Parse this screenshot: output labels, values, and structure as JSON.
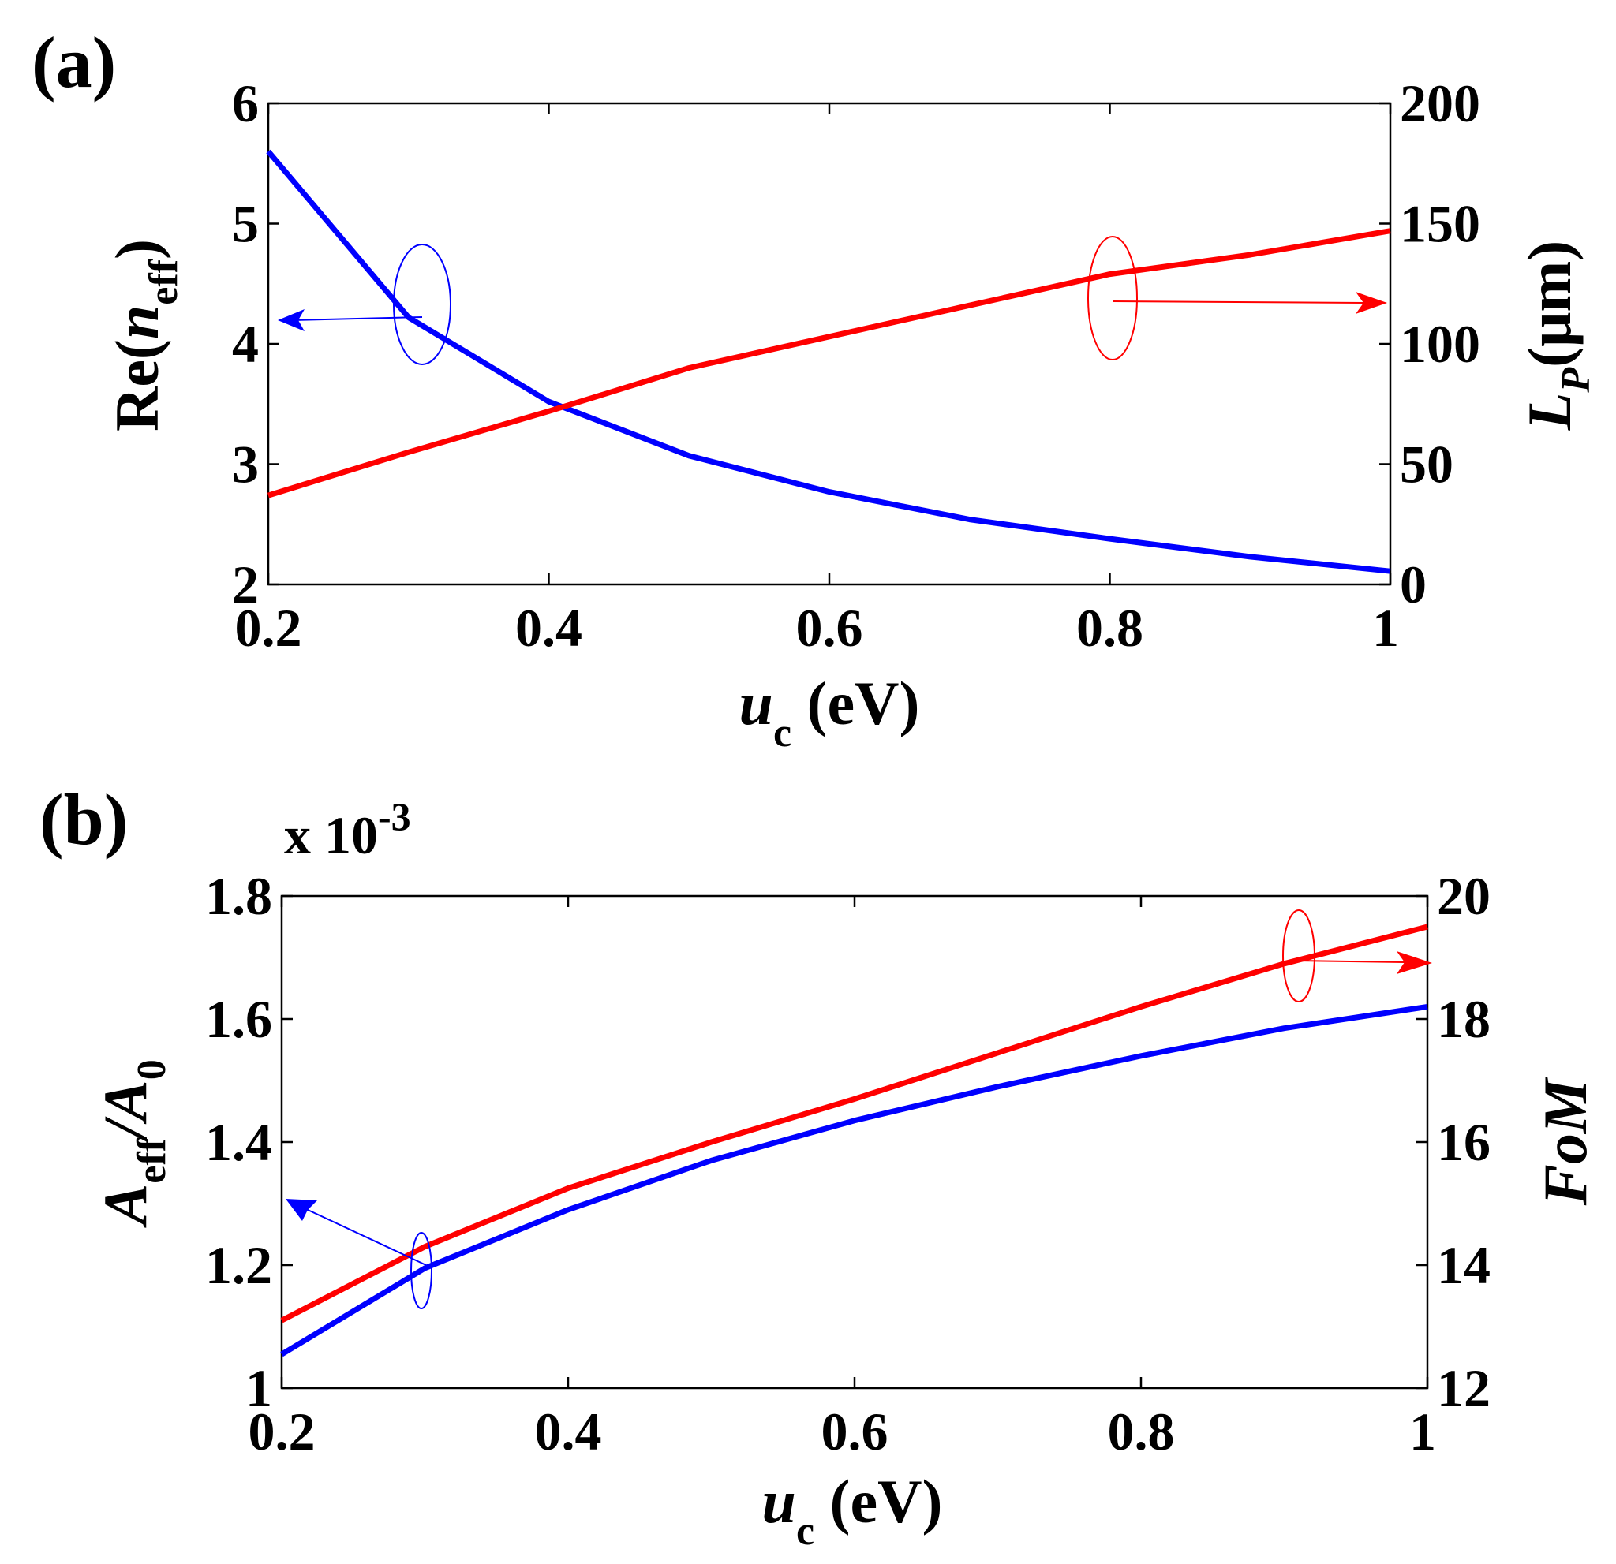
{
  "chart_data": [
    {
      "panel_label": "(a)",
      "type": "line",
      "x": [
        0.2,
        0.3,
        0.4,
        0.5,
        0.6,
        0.7,
        0.8,
        0.9,
        1.0
      ],
      "xlim": [
        0.2,
        1
      ],
      "xticks": [
        "0.2",
        "0.4",
        "0.6",
        "0.8",
        "1"
      ],
      "xlabel": {
        "main": "u",
        "sub": "c",
        "unit": " (eV)"
      },
      "ylim_left": [
        2,
        6
      ],
      "yticks_left": [
        "2",
        "3",
        "4",
        "5",
        "6"
      ],
      "ylabel_left": {
        "pre": "Re(",
        "main": "n",
        "sub": "eff",
        "post": ")"
      },
      "ylim_right": [
        0,
        200
      ],
      "yticks_right": [
        "0",
        "50",
        "100",
        "150",
        "200"
      ],
      "ylabel_right": {
        "main": "L",
        "sub": "P",
        "unit": "(μm)"
      },
      "series": [
        {
          "name": "Re(n_eff)",
          "axis": "left",
          "color": "#0000ff",
          "values": [
            5.6,
            4.22,
            3.52,
            3.07,
            2.77,
            2.54,
            2.38,
            2.23,
            2.11
          ]
        },
        {
          "name": "L_P",
          "axis": "right",
          "color": "#ff0000",
          "values": [
            37,
            55,
            72,
            90,
            103,
            116,
            129,
            137,
            147
          ]
        }
      ]
    },
    {
      "panel_label": "(b)",
      "type": "line",
      "x": [
        0.2,
        0.3,
        0.4,
        0.5,
        0.6,
        0.7,
        0.8,
        0.9,
        1.0
      ],
      "xlim": [
        0.2,
        1
      ],
      "xticks": [
        "0.2",
        "0.4",
        "0.6",
        "0.8",
        "1"
      ],
      "xlabel": {
        "main": "u",
        "sub": "c",
        "unit": " (eV)"
      },
      "ylim_left": [
        1,
        1.8
      ],
      "yticks_left": [
        "1",
        "1.2",
        "1.4",
        "1.6",
        "1.8"
      ],
      "left_multiplier": {
        "text": "x 10",
        "exp": "-3"
      },
      "ylabel_left": {
        "main": "A",
        "sub": "eff",
        "mid": "/",
        "main2": "A",
        "sub2": "0"
      },
      "ylim_right": [
        12,
        20
      ],
      "yticks_right": [
        "12",
        "14",
        "16",
        "18",
        "20"
      ],
      "ylabel_right": {
        "main": "FoM"
      },
      "series": [
        {
          "name": "A_eff/A_0",
          "axis": "left",
          "color": "#0000ff",
          "values": [
            1.055,
            1.195,
            1.29,
            1.37,
            1.435,
            1.49,
            1.54,
            1.585,
            1.62
          ]
        },
        {
          "name": "FoM",
          "axis": "right",
          "color": "#ff0000",
          "values": [
            13.1,
            14.3,
            15.25,
            16.0,
            16.7,
            17.45,
            18.2,
            18.9,
            19.5
          ]
        }
      ]
    }
  ]
}
